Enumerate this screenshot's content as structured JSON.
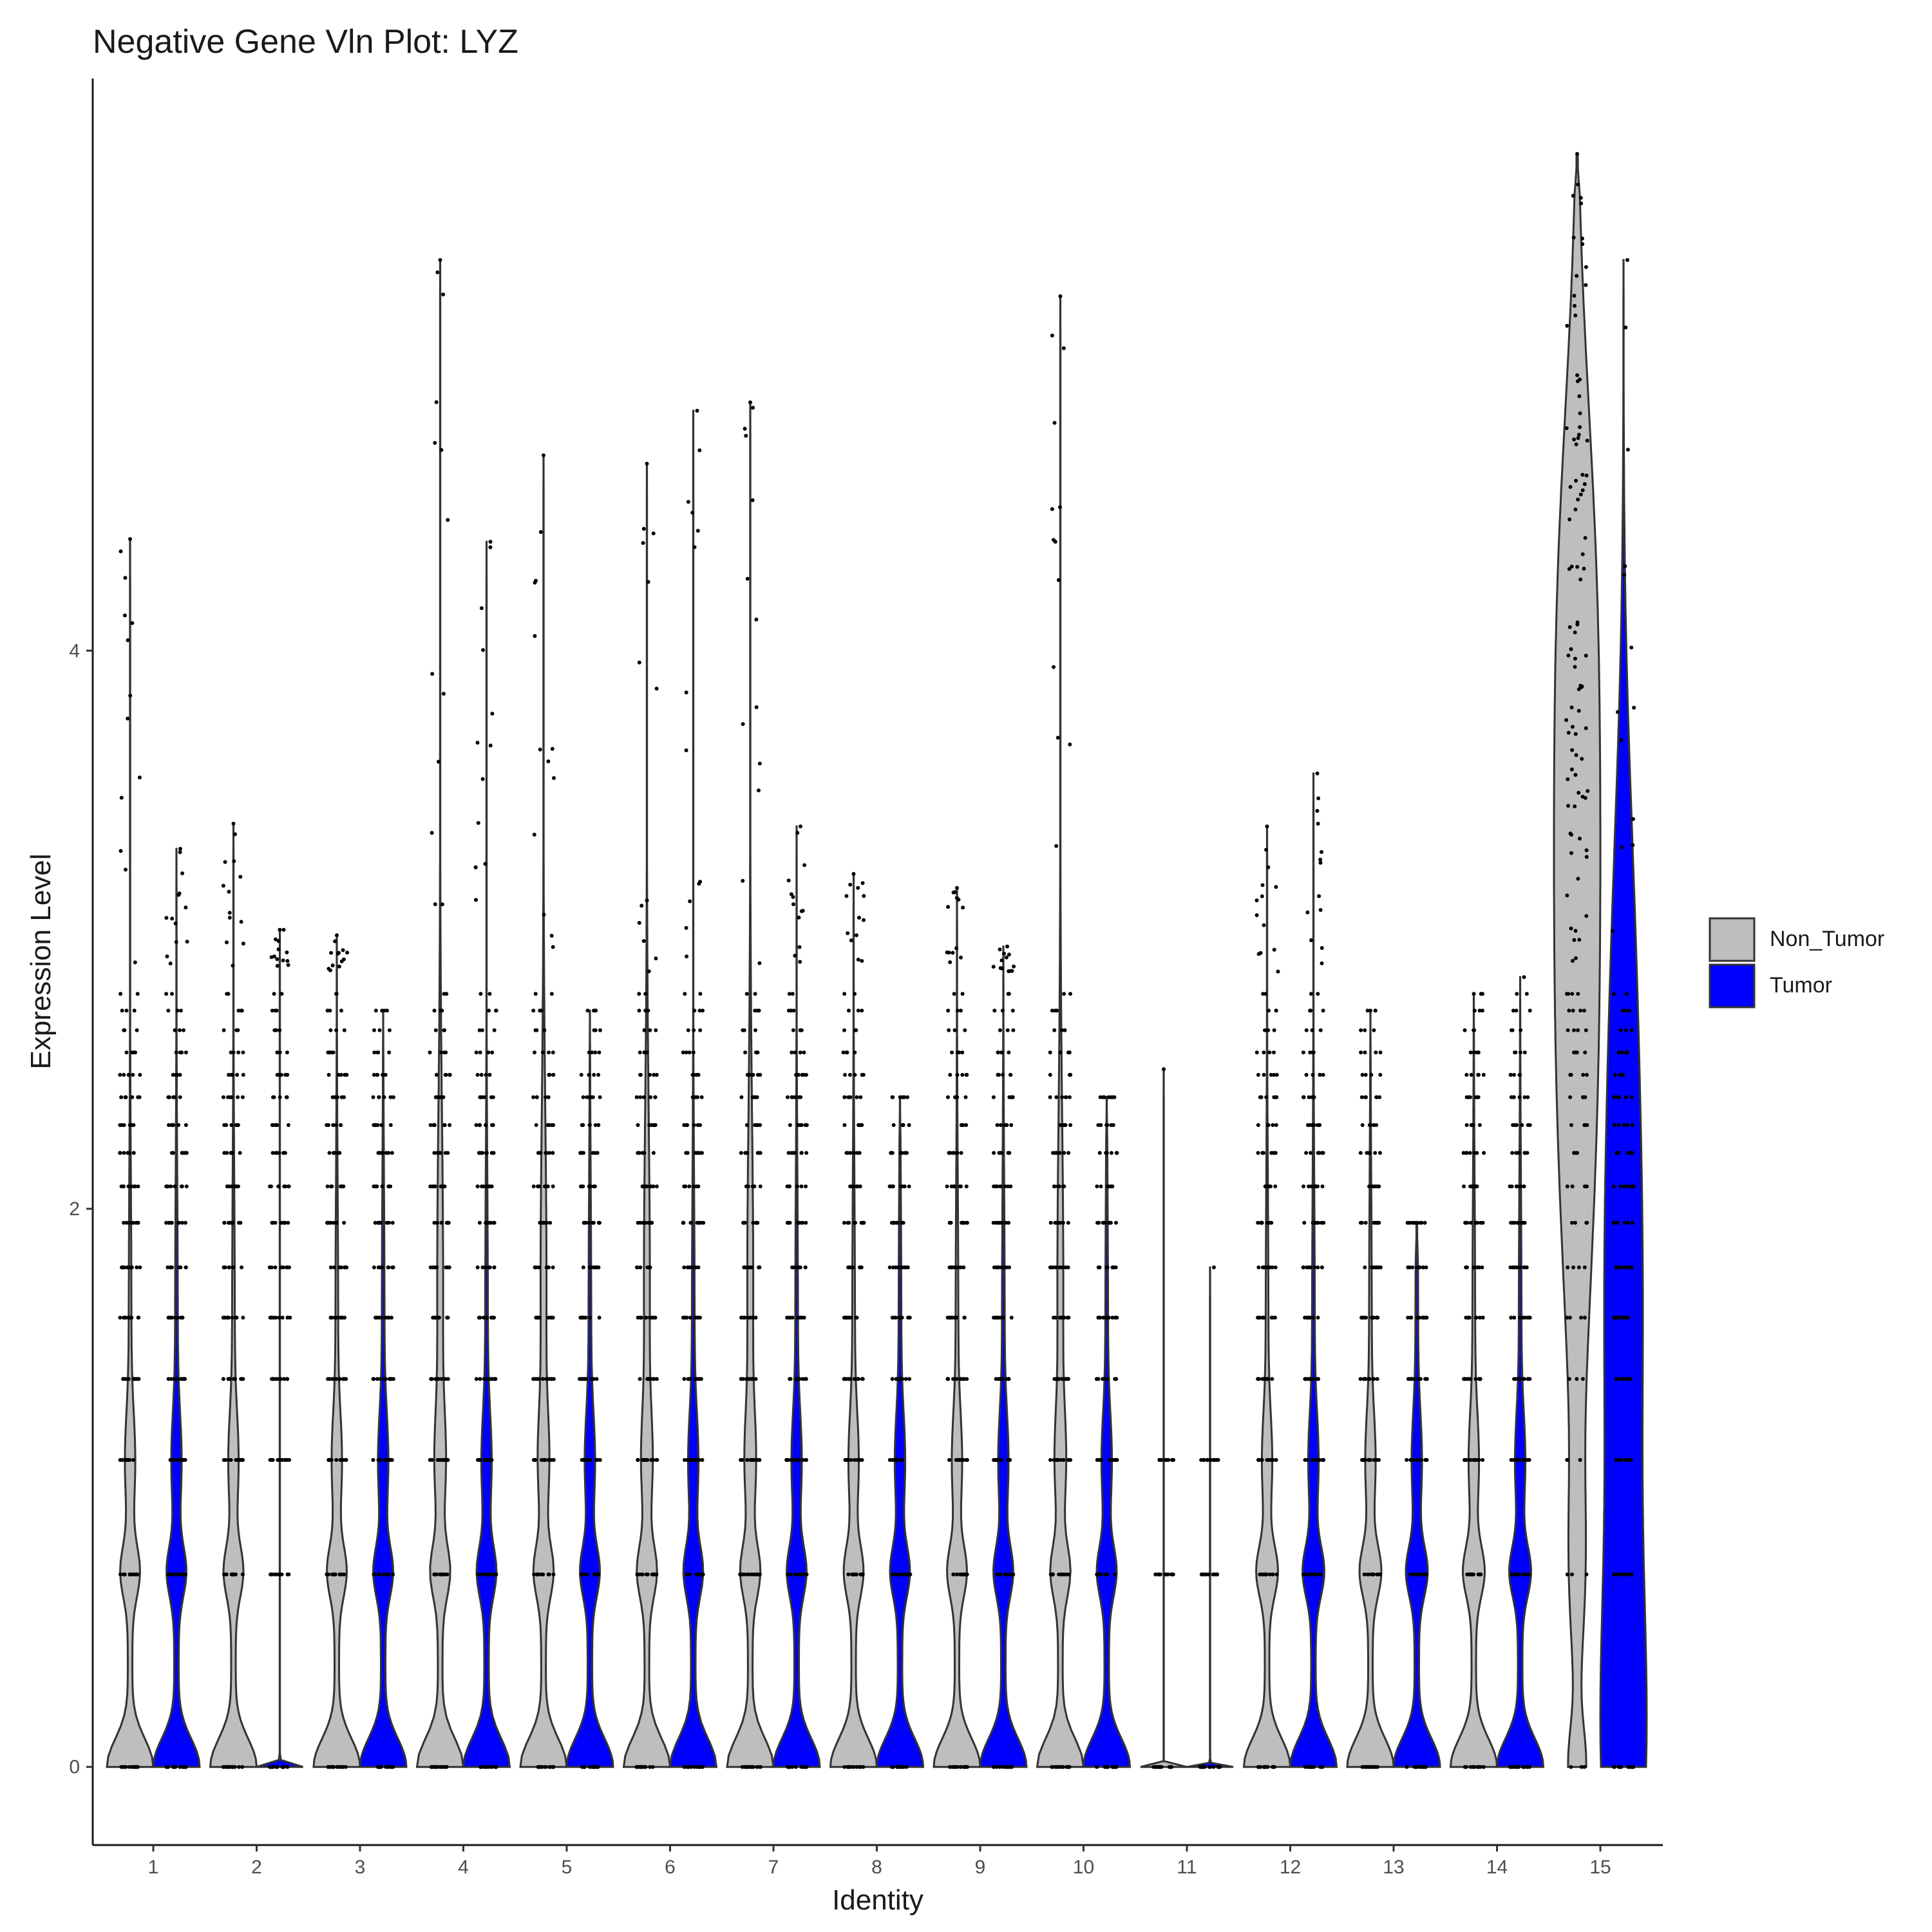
{
  "chart_data": {
    "type": "violin",
    "title": "Negative Gene Vln Plot: LYZ",
    "xlabel": "Identity",
    "ylabel": "Expression Level",
    "categories": [
      "1",
      "2",
      "3",
      "4",
      "5",
      "6",
      "7",
      "8",
      "9",
      "10",
      "11",
      "12",
      "13",
      "14",
      "15"
    ],
    "yticks": [
      0,
      2,
      4
    ],
    "ylim": [
      -0.28,
      6.05
    ],
    "grid": false,
    "legend_position": "right",
    "legend": [
      {
        "name": "Non_Tumor",
        "color": "#bebebe"
      },
      {
        "name": "Tumor",
        "color": "#0000ff"
      }
    ],
    "levels": [
      0,
      0.69,
      1.1,
      1.39,
      1.61,
      1.79,
      1.95,
      2.08,
      2.2,
      2.3,
      2.4,
      2.48,
      2.56,
      2.64,
      2.71,
      2.77
    ],
    "series": [
      {
        "name": "Non_Tumor",
        "color": "#bebebe",
        "max": [
          4.4,
          3.38,
          2.98,
          5.4,
          4.7,
          4.67,
          4.89,
          3.2,
          3.15,
          5.27,
          2.5,
          3.37,
          2.71,
          2.77,
          5.78
        ]
      },
      {
        "name": "Tumor",
        "color": "#0000ff",
        "max": [
          3.29,
          3.0,
          2.71,
          4.39,
          2.71,
          4.86,
          3.37,
          2.4,
          2.94,
          2.4,
          1.79,
          3.56,
          1.95,
          2.83,
          5.4
        ]
      }
    ]
  }
}
